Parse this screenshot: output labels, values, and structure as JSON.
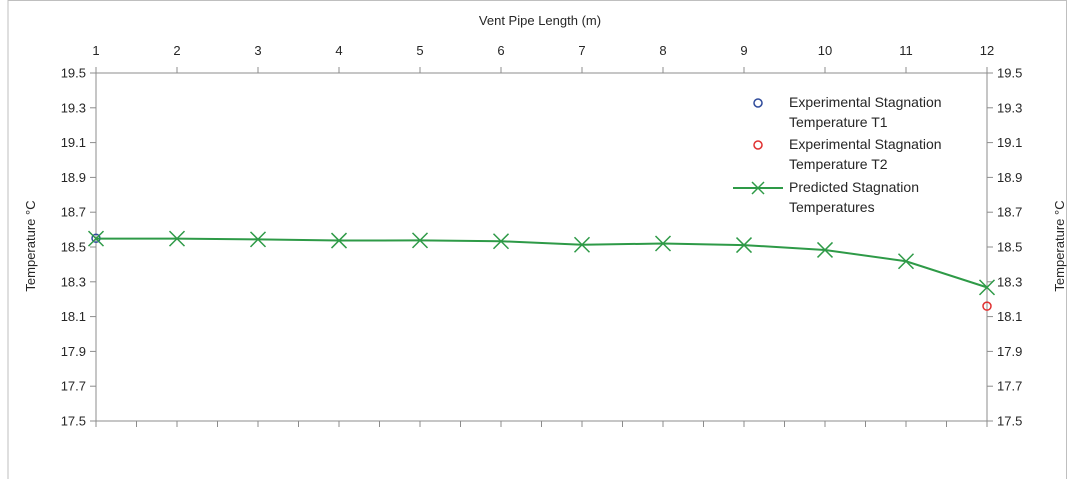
{
  "chart_data": {
    "type": "line",
    "xlabel": "Vent Pipe Length (m)",
    "ylabel": "Temperature °C",
    "ylabel_right": "Temperature °C",
    "x_ticks": [
      "1",
      "2",
      "3",
      "4",
      "5",
      "6",
      "7",
      "8",
      "9",
      "10",
      "11",
      "12"
    ],
    "y_ticks": [
      "19.5",
      "19.3",
      "19.1",
      "18.9",
      "18.7",
      "18.5",
      "18.3",
      "18.1",
      "17.9",
      "17.7",
      "17.5"
    ],
    "xlim": [
      1,
      12
    ],
    "ylim": [
      17.5,
      19.5
    ],
    "grid": false,
    "legend_position": "top-right",
    "series": [
      {
        "name": "Experimental Stagnation Temperature T1",
        "marker": "circle",
        "color": "#2f4b9b",
        "line": false,
        "x": [
          1
        ],
        "y": [
          18.55
        ]
      },
      {
        "name": "Experimental Stagnation Temperature T2",
        "marker": "circle",
        "color": "#e03030",
        "line": false,
        "x": [
          12
        ],
        "y": [
          18.16
        ]
      },
      {
        "name": "Predicted Stagnation Temperatures",
        "marker": "x",
        "color": "#2e9a47",
        "line": true,
        "x": [
          1,
          2,
          3,
          4,
          5,
          6,
          7,
          8,
          9,
          10,
          11,
          12
        ],
        "y": [
          18.548,
          18.548,
          18.544,
          18.537,
          18.538,
          18.533,
          18.513,
          18.52,
          18.511,
          18.483,
          18.418,
          18.268
        ]
      }
    ],
    "legend": [
      {
        "lines": [
          "Experimental Stagnation",
          "Temperature T1"
        ]
      },
      {
        "lines": [
          "Experimental Stagnation",
          "Temperature T2"
        ]
      },
      {
        "lines": [
          "Predicted Stagnation",
          "Temperatures"
        ]
      }
    ]
  }
}
